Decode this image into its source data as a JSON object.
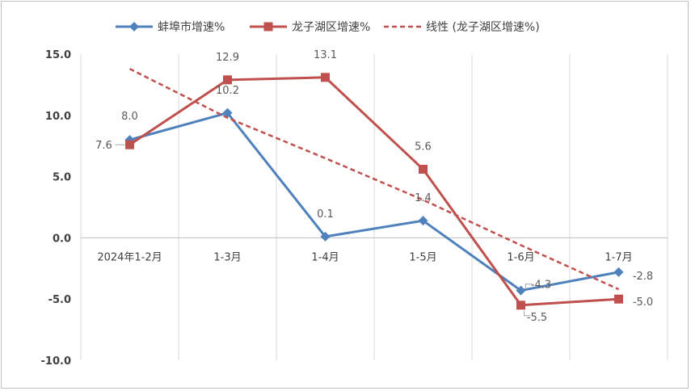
{
  "chart_data": {
    "type": "line",
    "categories": [
      "2024年1-2月",
      "1-3月",
      "1-4月",
      "1-5月",
      "1-6月",
      "1-7月"
    ],
    "ylim": [
      -10,
      15
    ],
    "yticks": [
      "15.0",
      "10.0",
      "5.0",
      "0.0",
      "-5.0",
      "-10.0"
    ],
    "grid": "vertical",
    "legend_position": "top",
    "series": [
      {
        "name": "蚌埠市增速%",
        "color": "#4F81BD",
        "marker": "diamond",
        "values": [
          8.0,
          10.2,
          0.1,
          1.4,
          -4.3,
          -2.8
        ],
        "labels": [
          "8.0",
          "10.2",
          "0.1",
          "1.4",
          "-4.3",
          "-2.8"
        ]
      },
      {
        "name": "龙子湖区增速%",
        "color": "#C0504D",
        "marker": "square",
        "values": [
          7.6,
          12.9,
          13.1,
          5.6,
          -5.5,
          -5.0
        ],
        "labels": [
          "7.6",
          "12.9",
          "13.1",
          "5.6",
          "-5.5",
          "-5.0"
        ]
      },
      {
        "name": "线性 (龙子湖区增速%)",
        "color": "#C0504D",
        "style": "dashed",
        "values": [
          13.8,
          9.8,
          6.5,
          3.1,
          -0.6,
          -4.2
        ]
      }
    ]
  }
}
